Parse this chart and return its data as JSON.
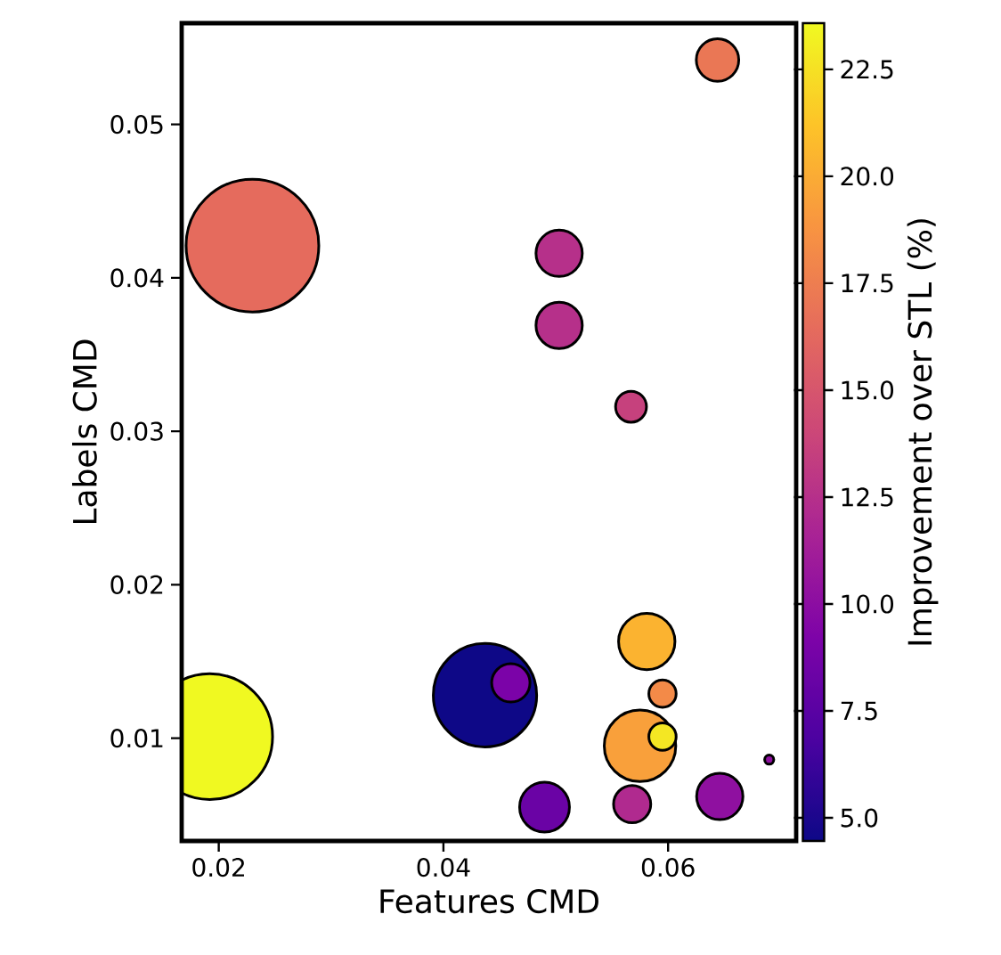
{
  "chart_data": {
    "type": "bubble",
    "xlabel": "Features CMD",
    "ylabel": "Labels CMD",
    "clabel": "Improvement over STL (%)",
    "x": [
      0.023,
      0.0192,
      0.0437,
      0.046,
      0.0644,
      0.0503,
      0.0503,
      0.0567,
      0.0581,
      0.0575,
      0.0595,
      0.0595,
      0.049,
      0.0568,
      0.0646,
      0.069
    ],
    "values": [
      0.0421,
      0.0101,
      0.0128,
      0.0136,
      0.0542,
      0.0416,
      0.0369,
      0.0316,
      0.0163,
      0.0095,
      0.0129,
      0.0101,
      0.0055,
      0.0057,
      0.0062,
      0.0086
    ],
    "cvalues": [
      16.4,
      23.6,
      4.5,
      9.1,
      17.1,
      12.5,
      12.5,
      13.6,
      20.4,
      19.4,
      18.2,
      22.8,
      8.3,
      12.1,
      10.2,
      10.2
    ],
    "sizes": [
      1,
      0.9,
      0.62,
      0.1,
      0.12,
      0.14,
      0.14,
      0.069,
      0.2,
      0.31,
      0.056,
      0.056,
      0.16,
      0.095,
      0.14,
      0.011
    ],
    "xlim": [
      0.0167,
      0.0714
    ],
    "ylim": [
      0.0033,
      0.0566
    ],
    "xticks": [
      0.02,
      0.04,
      0.06
    ],
    "yticks": [
      0.01,
      0.02,
      0.03,
      0.04,
      0.05
    ],
    "clim": [
      4.46,
      23.58
    ],
    "cticks": [
      {
        "value": 5,
        "label": "5.0"
      },
      {
        "value": 7.5,
        "label": "7.5"
      },
      {
        "value": 10,
        "label": "10.0"
      },
      {
        "value": 12.5,
        "label": "12.5"
      },
      {
        "value": 15,
        "label": "15.0"
      },
      {
        "value": 17.5,
        "label": "17.5"
      },
      {
        "value": 20,
        "label": "20.0"
      },
      {
        "value": 22.5,
        "label": "22.5"
      }
    ]
  }
}
